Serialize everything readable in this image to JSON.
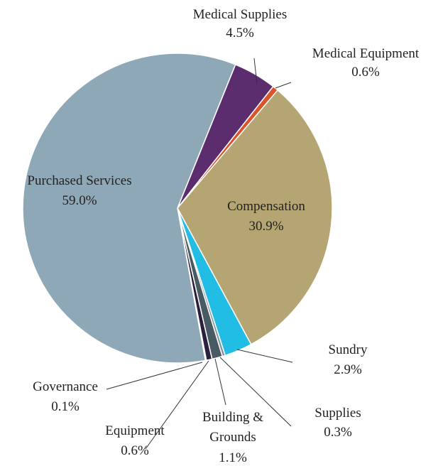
{
  "chart_data": {
    "type": "pie",
    "title": "",
    "start_angle_deg": 22,
    "slices": [
      {
        "name": "Medical Supplies",
        "value": 4.5,
        "label": "4.5%",
        "color": "#5b2d6e"
      },
      {
        "name": "Medical Equipment",
        "value": 0.6,
        "label": "0.6%",
        "color": "#d9532b"
      },
      {
        "name": "Compensation",
        "value": 30.9,
        "label": "30.9%",
        "color": "#b5a572"
      },
      {
        "name": "Sundry",
        "value": 2.9,
        "label": "2.9%",
        "color": "#22bde4"
      },
      {
        "name": "Supplies",
        "value": 0.3,
        "label": "0.3%",
        "color": "#7e93a6"
      },
      {
        "name": "Building & Grounds",
        "value": 1.1,
        "label": "1.1%",
        "color": "#4a5a63"
      },
      {
        "name": "Equipment",
        "value": 0.6,
        "label": "0.6%",
        "color": "#2a1f3d"
      },
      {
        "name": "Governance",
        "value": 0.1,
        "label": "0.1%",
        "color": "#9fb4c4"
      },
      {
        "name": "Purchased Services",
        "value": 59.0,
        "label": "59.0%",
        "color": "#8fa8b8"
      }
    ]
  }
}
